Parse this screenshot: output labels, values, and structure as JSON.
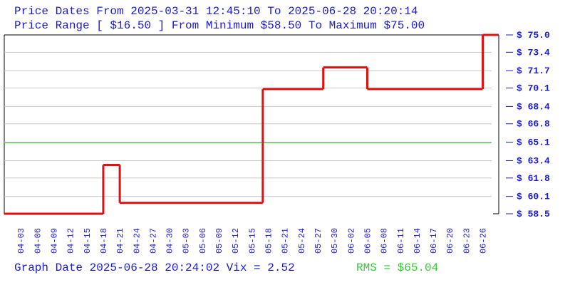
{
  "chart_data": {
    "type": "step",
    "title": "Price Dates From 2025-03-31 12:45:10 To 2025-06-28 20:20:14",
    "subtitle": "Price Range [ $16.50 ] From Minimum $58.50 To Maximum $75.00",
    "footer": "Graph Date 2025-06-28 20:24:02 Vix = 2.52",
    "rms": {
      "label": "RMS = $65.04",
      "value": 65.04,
      "color": "#33cc33"
    },
    "x": [
      "03-31",
      "04-18",
      "04-21",
      "05-17",
      "05-28",
      "06-05",
      "06-26"
    ],
    "values": [
      58.5,
      63.0,
      59.5,
      70.0,
      72.0,
      70.0,
      75.0
    ],
    "color": "#e01010",
    "xlim": [
      "03-31",
      "06-28"
    ],
    "xticks": [
      "04-03",
      "04-06",
      "04-09",
      "04-12",
      "04-15",
      "04-18",
      "04-21",
      "04-24",
      "04-27",
      "04-30",
      "05-03",
      "05-06",
      "05-09",
      "05-12",
      "05-15",
      "05-18",
      "05-21",
      "05-24",
      "05-27",
      "05-30",
      "06-02",
      "06-05",
      "06-08",
      "06-11",
      "06-14",
      "06-17",
      "06-20",
      "06-23",
      "06-26"
    ],
    "ylim": [
      58.5,
      75.0
    ],
    "yticks": [
      {
        "value": 58.5,
        "label": "$ 58.5"
      },
      {
        "value": 60.1,
        "label": "$ 60.1"
      },
      {
        "value": 61.8,
        "label": "$ 61.8"
      },
      {
        "value": 63.4,
        "label": "$ 63.4"
      },
      {
        "value": 65.1,
        "label": "$ 65.1"
      },
      {
        "value": 66.8,
        "label": "$ 66.8"
      },
      {
        "value": 68.4,
        "label": "$ 68.4"
      },
      {
        "value": 70.1,
        "label": "$ 70.1"
      },
      {
        "value": 71.7,
        "label": "$ 71.7"
      },
      {
        "value": 73.4,
        "label": "$ 73.4"
      },
      {
        "value": 75.0,
        "label": "$ 75.0"
      }
    ],
    "y_axis_side": "right",
    "grid": true
  }
}
